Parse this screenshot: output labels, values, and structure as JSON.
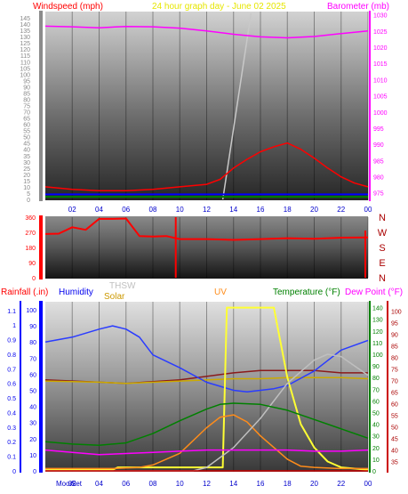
{
  "header": {
    "left": "Windspeed (mph)",
    "center": "24 hour graph day - June 02 2025",
    "right": "Barometer (mb)"
  },
  "colors": {
    "windspeed": "#ff0000",
    "wind_avg": "#0000ff",
    "wind_low": "#008000",
    "barometer": "#ff00ff",
    "humidity": "#2a3cff",
    "solar": "#ffff33",
    "uv": "#ff8c1a",
    "thsw": "#bfbfbf",
    "temperature": "#008000",
    "dewpoint": "#ff00ff",
    "rain": "#cc0000",
    "gold": "#ccaa00",
    "cutoff_line": "#c8c8c8"
  },
  "chart_data": [
    {
      "type": "line",
      "title": "24 hour graph day - June 02 2025",
      "x_ticks": [
        "02",
        "04",
        "06",
        "08",
        "10",
        "12",
        "14",
        "16",
        "18",
        "20",
        "22",
        "00"
      ],
      "left_axis": {
        "label": "Windspeed (mph)",
        "ticks": [
          0,
          5,
          10,
          15,
          20,
          25,
          30,
          35,
          40,
          45,
          50,
          55,
          60,
          65,
          70,
          75,
          80,
          85,
          90,
          95,
          100,
          105,
          110,
          115,
          120,
          125,
          130,
          135,
          140,
          145
        ],
        "range": [
          0,
          150
        ]
      },
      "right_axis": {
        "label": "Barometer (mb)",
        "ticks": [
          975,
          980,
          985,
          990,
          995,
          1000,
          1005,
          1010,
          1015,
          1020,
          1025,
          1030
        ],
        "range": [
          973,
          1031
        ]
      },
      "series": [
        {
          "name": "Windspeed (mph)",
          "axis": "left",
          "x": [
            0,
            2,
            4,
            6,
            8,
            10,
            12,
            13,
            14,
            15,
            16,
            17,
            18,
            19,
            20,
            21,
            22,
            23,
            24
          ],
          "y": [
            10,
            8,
            7,
            7,
            8,
            10,
            12,
            16,
            25,
            32,
            38,
            42,
            45,
            40,
            33,
            25,
            18,
            13,
            10
          ]
        },
        {
          "name": "Barometer (mb)",
          "axis": "right",
          "x": [
            0,
            2,
            4,
            6,
            8,
            10,
            12,
            14,
            16,
            18,
            20,
            22,
            24
          ],
          "y": [
            1026.5,
            1026.3,
            1026.0,
            1026.4,
            1026.3,
            1025.9,
            1025.0,
            1024.0,
            1023.2,
            1022.9,
            1023.3,
            1024.2,
            1025.0
          ]
        }
      ]
    },
    {
      "type": "line",
      "x_ticks": [
        "02",
        "04",
        "06",
        "08",
        "10",
        "12",
        "14",
        "16",
        "18",
        "20",
        "22",
        "00"
      ],
      "left_axis": {
        "ticks": [
          0,
          90,
          180,
          270,
          360
        ],
        "range": [
          0,
          360
        ]
      },
      "right_axis": {
        "labels": [
          "N",
          "W",
          "S",
          "E",
          "N"
        ]
      },
      "series": [
        {
          "name": "Wind direction",
          "x": [
            0,
            1,
            2,
            3,
            4,
            5,
            6,
            7,
            8,
            9,
            10,
            12,
            14,
            16,
            18,
            20,
            22,
            24
          ],
          "y": [
            260,
            262,
            300,
            285,
            350,
            350,
            352,
            248,
            245,
            248,
            230,
            230,
            225,
            230,
            235,
            232,
            238,
            240
          ]
        }
      ]
    },
    {
      "type": "line",
      "x_ticks": [
        "Moon",
        "Set",
        "02",
        "04",
        "06",
        "08",
        "10",
        "12",
        "14",
        "16",
        "18",
        "20",
        "22",
        "00"
      ],
      "legend": [
        "Rainfall (.in)",
        "Humidity",
        "THSW",
        "Solar",
        "UV",
        "Temperature (°F)",
        "Dew Point (°F)"
      ],
      "rain_axis": {
        "label": "Rainfall (.in)",
        "ticks": [
          0,
          0.1,
          0.2,
          0.3,
          0.4,
          0.5,
          0.6,
          0.7,
          0.8,
          0.9,
          1,
          1.1
        ],
        "range": [
          0,
          1.16
        ]
      },
      "humidity_axis": {
        "label": "Humidity",
        "ticks": [
          0,
          10,
          20,
          30,
          40,
          50,
          60,
          70,
          80,
          90,
          100
        ],
        "range": [
          0,
          105
        ]
      },
      "temperature_axis": {
        "label": "Temperature (°F)",
        "ticks": [
          0,
          10,
          20,
          30,
          40,
          50,
          60,
          70,
          80,
          90,
          100,
          110,
          120,
          130,
          140
        ],
        "range": [
          0,
          145
        ]
      },
      "dewpoint_axis": {
        "label": "Dew Point (°F)",
        "ticks": [
          35,
          40,
          45,
          50,
          55,
          60,
          65,
          70,
          75,
          80,
          85,
          90,
          95,
          100
        ],
        "range": [
          31,
          104
        ]
      },
      "series": [
        {
          "name": "Humidity",
          "axis": "humidity",
          "x": [
            0,
            2,
            4,
            5,
            6,
            7,
            8,
            10,
            12,
            14,
            15,
            16,
            17,
            18,
            20,
            22,
            24
          ],
          "y": [
            80,
            83,
            88,
            90,
            88,
            83,
            72,
            64,
            55,
            50,
            49,
            50,
            51,
            53,
            62,
            75,
            81
          ]
        },
        {
          "name": "Solar",
          "axis": "temperature",
          "x": [
            0,
            5,
            5.4,
            13.2,
            13.5,
            17,
            17.2,
            18,
            19,
            20,
            21,
            22,
            24
          ],
          "y": [
            1,
            1,
            3,
            3,
            140,
            140,
            128,
            80,
            40,
            20,
            8,
            3,
            1
          ]
        },
        {
          "name": "UV",
          "axis": "temperature",
          "x": [
            0,
            5,
            7,
            8,
            10,
            12,
            13,
            14,
            15,
            16,
            18,
            19,
            20,
            22,
            24
          ],
          "y": [
            2,
            2,
            3,
            5,
            15,
            37,
            46,
            48,
            42,
            30,
            10,
            4,
            3,
            2,
            2
          ]
        },
        {
          "name": "THSW",
          "axis": "temperature",
          "x": [
            0,
            11,
            12,
            14,
            16,
            18,
            20,
            21,
            22,
            24
          ],
          "y": [
            0,
            0,
            3,
            20,
            45,
            75,
            95,
            100,
            98,
            82
          ]
        },
        {
          "name": "Temperature (°F)",
          "axis": "temperature",
          "x": [
            0,
            2,
            4,
            6,
            8,
            10,
            12,
            13,
            14,
            16,
            18,
            20,
            22,
            24
          ],
          "y": [
            25,
            23,
            22,
            24,
            32,
            43,
            53,
            57,
            58,
            57,
            52,
            44,
            36,
            28
          ]
        },
        {
          "name": "Dew Point (°F)",
          "axis": "dewpoint",
          "x": [
            0,
            2,
            4,
            6,
            8,
            10,
            12,
            14,
            16,
            18,
            20,
            22,
            24
          ],
          "y": [
            40,
            39,
            38,
            38.5,
            39,
            39.5,
            40,
            40,
            40,
            40,
            39.5,
            39.5,
            40
          ]
        },
        {
          "name": "Rainfall (.in)",
          "axis": "rain",
          "x": [
            0,
            24
          ],
          "y": [
            0,
            0
          ]
        }
      ],
      "extra_lines": [
        {
          "name": "dark red line",
          "axis": "temperature",
          "x": [
            0,
            4,
            6,
            10,
            14,
            16,
            18,
            20,
            22,
            24
          ],
          "y": [
            78,
            76,
            75,
            78,
            84,
            86,
            86,
            86,
            84,
            84
          ]
        },
        {
          "name": "gold line",
          "axis": "temperature",
          "x": [
            0,
            4,
            6,
            10,
            14,
            16,
            18,
            20,
            22,
            24
          ],
          "y": [
            77,
            76,
            75,
            77,
            79,
            79,
            80,
            80,
            80,
            79
          ]
        }
      ]
    }
  ]
}
